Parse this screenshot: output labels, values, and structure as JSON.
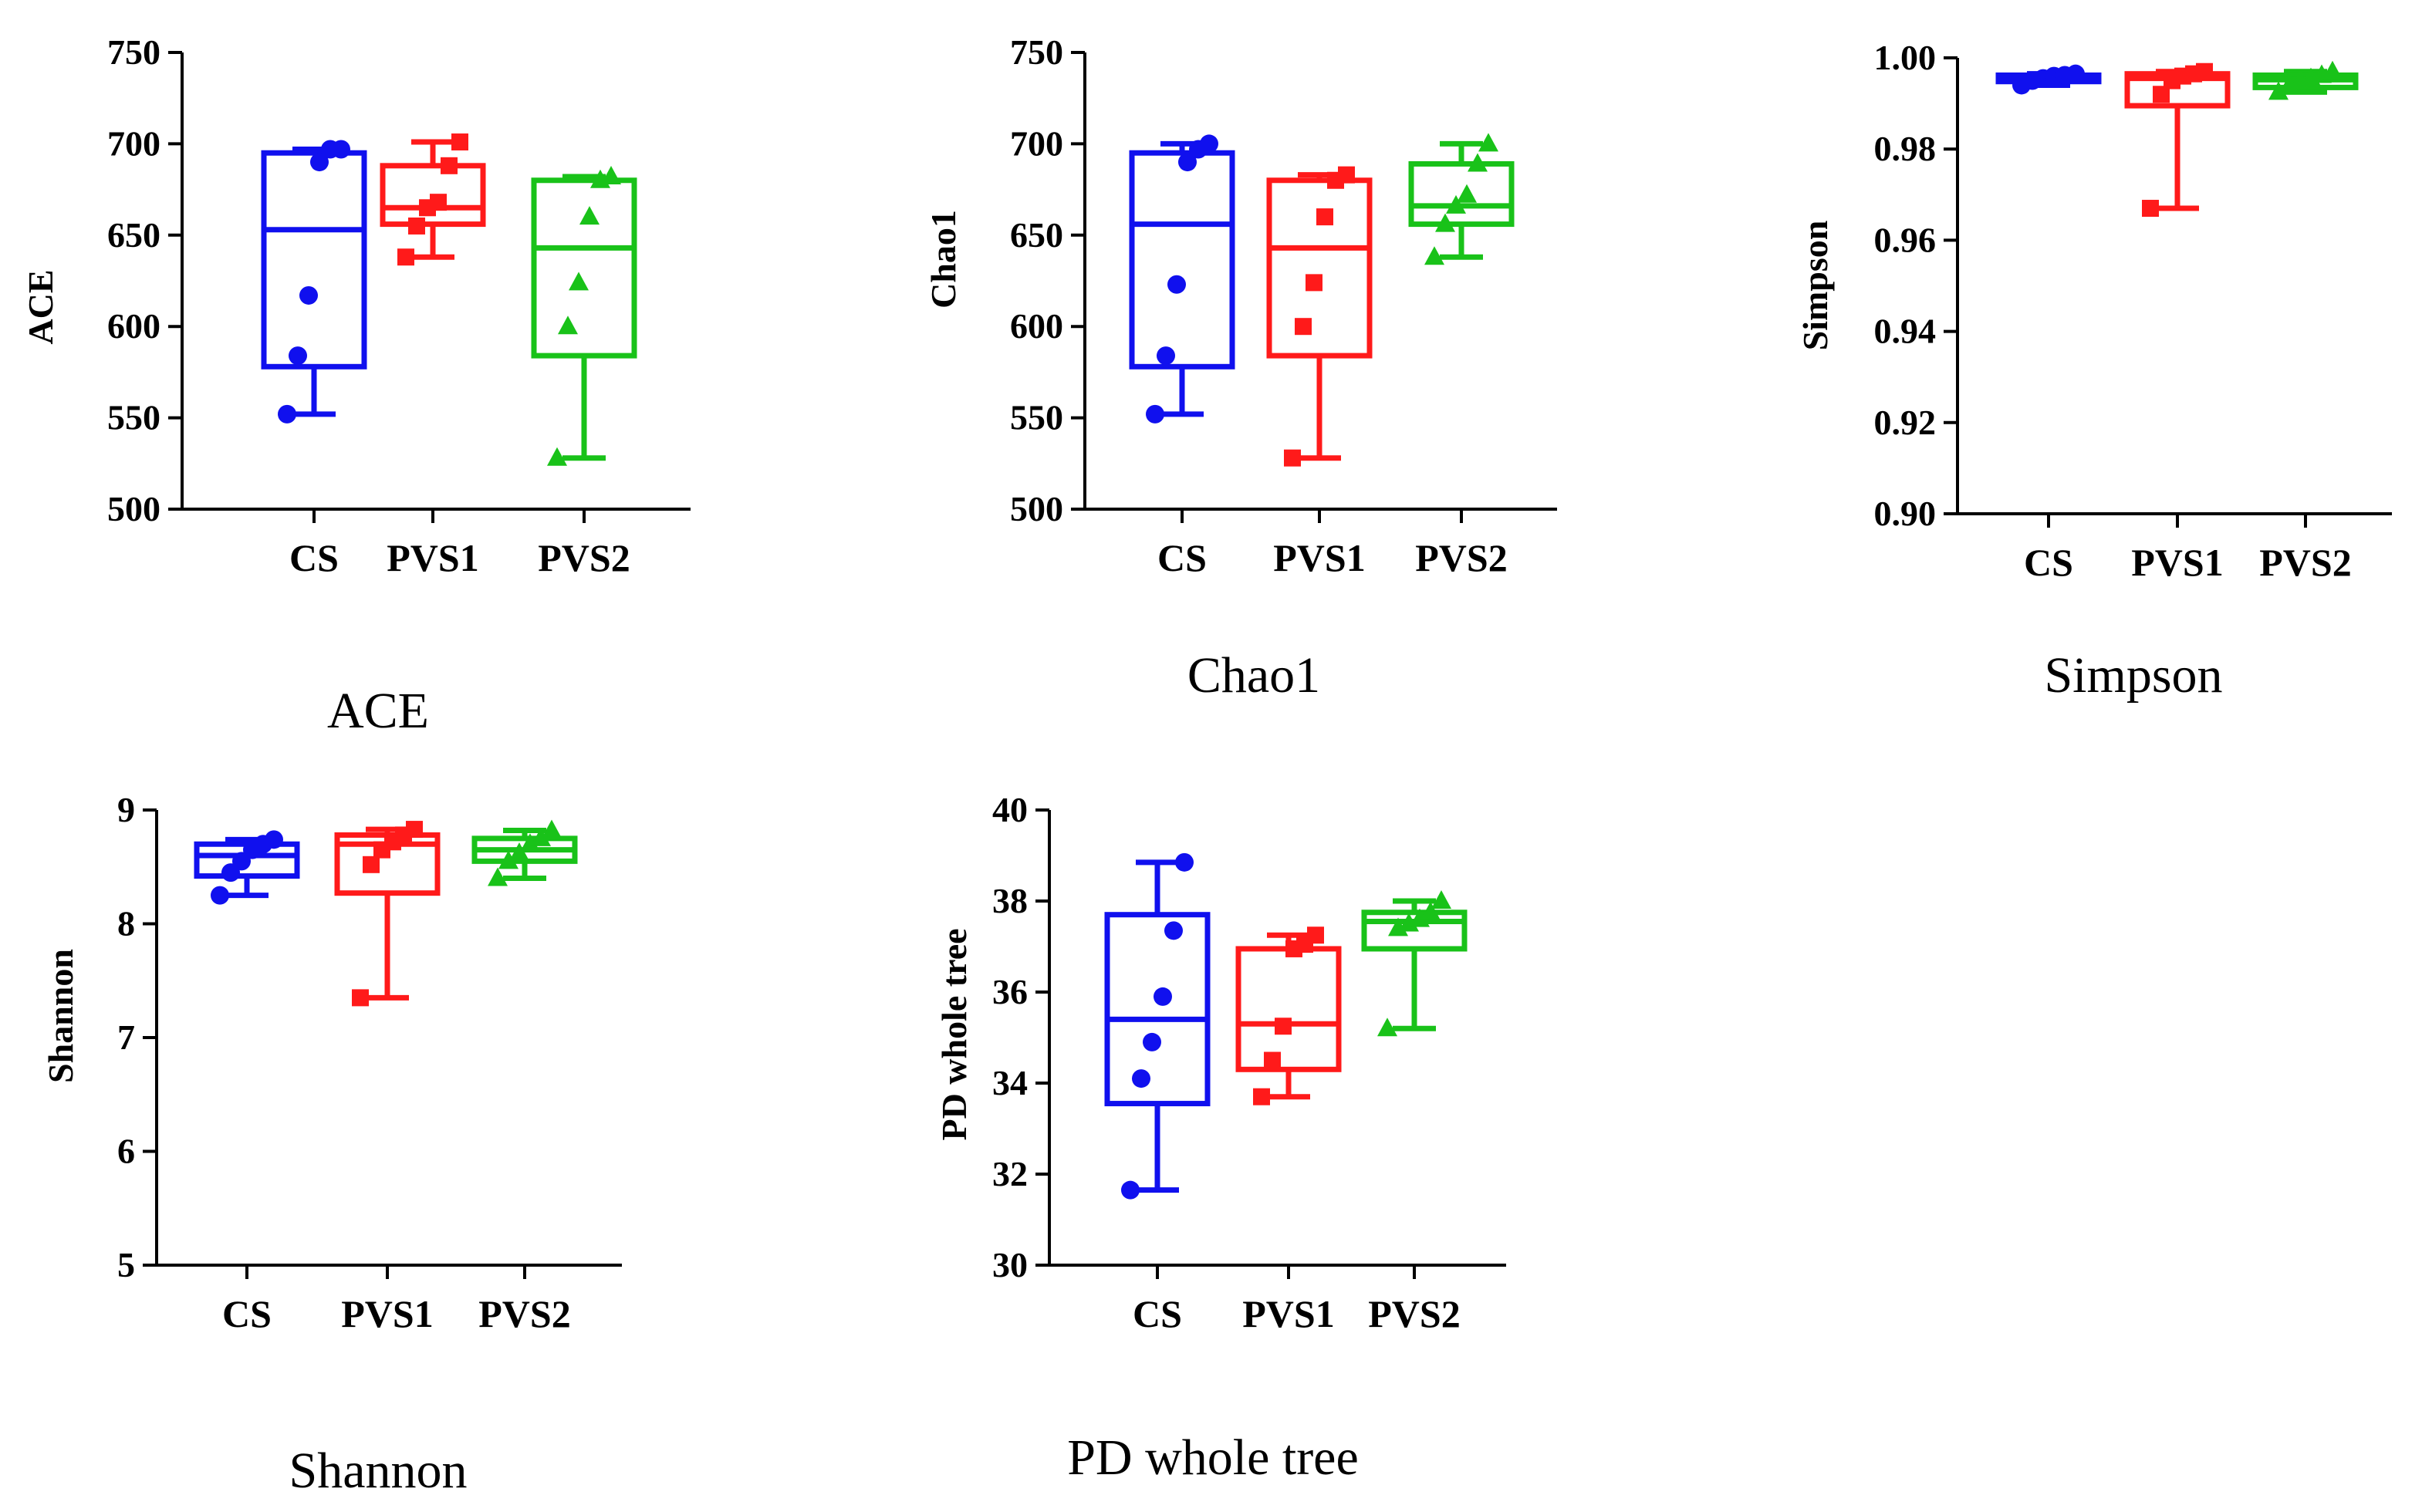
{
  "chart_data": [
    {
      "type": "box",
      "caption": "ACE",
      "ylabel": "ACE",
      "ylim": [
        500,
        750
      ],
      "yticks": [
        500,
        550,
        600,
        650,
        700,
        750
      ],
      "ytick_labels": [
        "500",
        "550",
        "600",
        "650",
        "700",
        "750"
      ],
      "categories": [
        "CS",
        "PVS1",
        "PVS2"
      ],
      "series": [
        {
          "name": "CS",
          "color": "#1010ee",
          "marker": "circle",
          "min": 552,
          "q1": 578,
          "median": 653,
          "q3": 695,
          "max": 697,
          "points": [
            552,
            584,
            617,
            690,
            697,
            697
          ]
        },
        {
          "name": "PVS1",
          "color": "#ff1a1a",
          "marker": "square",
          "min": 638,
          "q1": 656,
          "median": 665,
          "q3": 688,
          "max": 701,
          "points": [
            638,
            655,
            665,
            668,
            688,
            701
          ]
        },
        {
          "name": "PVS2",
          "color": "#19c219",
          "marker": "triangle",
          "min": 528,
          "q1": 584,
          "median": 643,
          "q3": 680,
          "max": 682,
          "points": [
            528,
            600,
            624,
            660,
            680,
            682
          ]
        }
      ]
    },
    {
      "type": "box",
      "caption": "Chao1",
      "ylabel": "Chao1",
      "ylim": [
        500,
        750
      ],
      "yticks": [
        500,
        550,
        600,
        650,
        700,
        750
      ],
      "ytick_labels": [
        "500",
        "550",
        "600",
        "650",
        "700",
        "750"
      ],
      "categories": [
        "CS",
        "PVS1",
        "PVS2"
      ],
      "series": [
        {
          "name": "CS",
          "color": "#1010ee",
          "marker": "circle",
          "min": 552,
          "q1": 578,
          "median": 656,
          "q3": 695,
          "max": 700,
          "points": [
            552,
            584,
            623,
            690,
            697,
            700
          ]
        },
        {
          "name": "PVS1",
          "color": "#ff1a1a",
          "marker": "square",
          "min": 528,
          "q1": 584,
          "median": 643,
          "q3": 680,
          "max": 683,
          "points": [
            528,
            600,
            624,
            660,
            680,
            683
          ]
        },
        {
          "name": "PVS2",
          "color": "#19c219",
          "marker": "triangle",
          "min": 638,
          "q1": 656,
          "median": 666,
          "q3": 689,
          "max": 700,
          "points": [
            638,
            656,
            666,
            672,
            689,
            700
          ]
        }
      ]
    },
    {
      "type": "box",
      "caption": "Simpson",
      "ylabel": "Simpson",
      "ylim": [
        0.9,
        1.0
      ],
      "yticks": [
        0.9,
        0.92,
        0.94,
        0.96,
        0.98,
        1.0
      ],
      "ytick_labels": [
        "0.90",
        "0.92",
        "0.94",
        "0.96",
        "0.98",
        "1.00"
      ],
      "categories": [
        "CS",
        "PVS1",
        "PVS2"
      ],
      "series": [
        {
          "name": "CS",
          "color": "#1010ee",
          "marker": "circle",
          "min": 0.994,
          "q1": 0.9948,
          "median": 0.9955,
          "q3": 0.9962,
          "max": 0.9965,
          "points": [
            0.994,
            0.995,
            0.9955,
            0.996,
            0.9962,
            0.9965
          ]
        },
        {
          "name": "PVS1",
          "color": "#ff1a1a",
          "marker": "square",
          "min": 0.967,
          "q1": 0.9895,
          "median": 0.9955,
          "q3": 0.9965,
          "max": 0.997,
          "points": [
            0.967,
            0.992,
            0.995,
            0.996,
            0.9965,
            0.997
          ]
        },
        {
          "name": "PVS2",
          "color": "#19c219",
          "marker": "triangle",
          "min": 0.9925,
          "q1": 0.9935,
          "median": 0.9952,
          "q3": 0.9962,
          "max": 0.997,
          "points": [
            0.9925,
            0.994,
            0.995,
            0.9955,
            0.9962,
            0.997
          ]
        }
      ]
    },
    {
      "type": "box",
      "caption": "Shannon",
      "ylabel": "Shannon",
      "ylim": [
        5,
        9
      ],
      "yticks": [
        5,
        6,
        7,
        8,
        9
      ],
      "ytick_labels": [
        "5",
        "6",
        "7",
        "8",
        "9"
      ],
      "categories": [
        "CS",
        "PVS1",
        "PVS2"
      ],
      "series": [
        {
          "name": "CS",
          "color": "#1010ee",
          "marker": "circle",
          "min": 8.25,
          "q1": 8.42,
          "median": 8.6,
          "q3": 8.7,
          "max": 8.74,
          "points": [
            8.25,
            8.45,
            8.55,
            8.65,
            8.7,
            8.74
          ]
        },
        {
          "name": "PVS1",
          "color": "#ff1a1a",
          "marker": "square",
          "min": 7.35,
          "q1": 8.27,
          "median": 8.7,
          "q3": 8.78,
          "max": 8.83,
          "points": [
            7.35,
            8.52,
            8.65,
            8.72,
            8.78,
            8.83
          ]
        },
        {
          "name": "PVS2",
          "color": "#19c219",
          "marker": "triangle",
          "min": 8.4,
          "q1": 8.55,
          "median": 8.65,
          "q3": 8.75,
          "max": 8.82,
          "points": [
            8.4,
            8.55,
            8.62,
            8.7,
            8.75,
            8.82
          ]
        }
      ]
    },
    {
      "type": "box",
      "caption": "PD whole tree",
      "ylabel": "PD whole tree",
      "ylim": [
        30,
        40
      ],
      "yticks": [
        30,
        32,
        34,
        36,
        38,
        40
      ],
      "ytick_labels": [
        "30",
        "32",
        "34",
        "36",
        "38",
        "40"
      ],
      "categories": [
        "CS",
        "PVS1",
        "PVS2"
      ],
      "series": [
        {
          "name": "CS",
          "color": "#1010ee",
          "marker": "circle",
          "min": 31.65,
          "q1": 33.55,
          "median": 35.4,
          "q3": 37.7,
          "max": 38.85,
          "points": [
            31.65,
            34.1,
            34.9,
            35.9,
            37.35,
            38.85
          ]
        },
        {
          "name": "PVS1",
          "color": "#ff1a1a",
          "marker": "square",
          "min": 33.7,
          "q1": 34.3,
          "median": 35.3,
          "q3": 36.95,
          "max": 37.25,
          "points": [
            33.7,
            34.5,
            35.25,
            36.95,
            37.05,
            37.25
          ]
        },
        {
          "name": "PVS2",
          "color": "#19c219",
          "marker": "triangle",
          "min": 35.2,
          "q1": 36.95,
          "median": 37.55,
          "q3": 37.75,
          "max": 38.0,
          "points": [
            35.2,
            37.4,
            37.5,
            37.6,
            37.75,
            38.0
          ]
        }
      ]
    }
  ]
}
